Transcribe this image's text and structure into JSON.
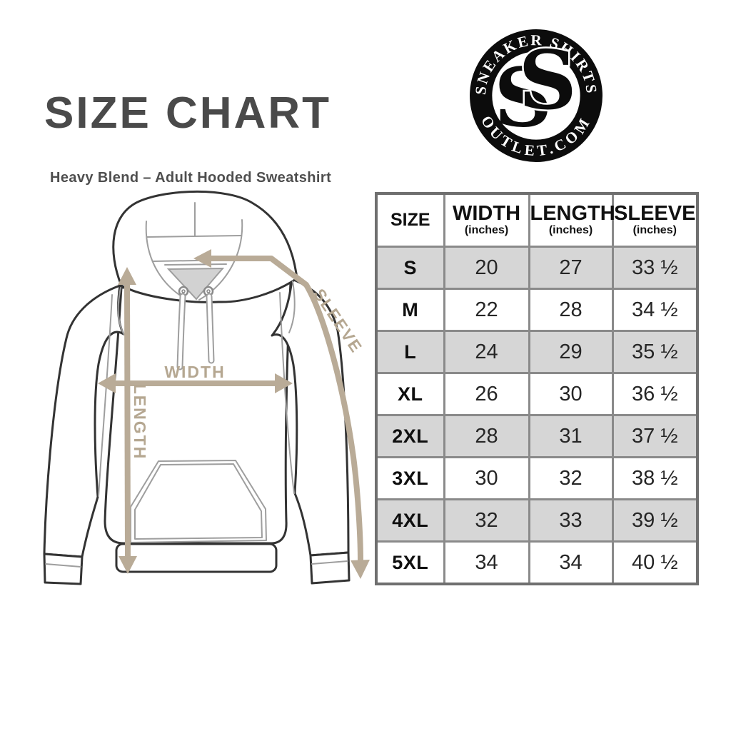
{
  "header": {
    "title": "SIZE CHART",
    "subtitle": "Heavy Blend – Adult Hooded Sweatshirt"
  },
  "logo": {
    "arc_top": "SNEAKER SHIRTS",
    "arc_bottom": "OUTLET.COM",
    "monogram_left": "S",
    "monogram_right": "S",
    "bg_color": "#0c0c0c",
    "text_color": "#ffffff"
  },
  "diagram": {
    "width_label": "WIDTH",
    "length_label": "LENGTH",
    "sleeve_label": "SLEEVE",
    "arrow_color": "#b9ab97",
    "outline_color": "#333333",
    "seam_color": "#9e9e9e"
  },
  "table": {
    "columns": [
      {
        "label": "SIZE",
        "sub": ""
      },
      {
        "label": "WIDTH",
        "sub": "(inches)"
      },
      {
        "label": "LENGTH",
        "sub": "(inches)"
      },
      {
        "label": "SLEEVE",
        "sub": "(inches)"
      }
    ],
    "rows": [
      [
        "S",
        "20",
        "27",
        "33 ½"
      ],
      [
        "M",
        "22",
        "28",
        "34 ½"
      ],
      [
        "L",
        "24",
        "29",
        "35 ½"
      ],
      [
        "XL",
        "26",
        "30",
        "36 ½"
      ],
      [
        "2XL",
        "28",
        "31",
        "37 ½"
      ],
      [
        "3XL",
        "30",
        "32",
        "38 ½"
      ],
      [
        "4XL",
        "32",
        "33",
        "39 ½"
      ],
      [
        "5XL",
        "34",
        "34",
        "40 ½"
      ]
    ],
    "border_color": "#8a8a8a",
    "alt_row_color": "#d6d6d6"
  },
  "chart_data": {
    "type": "table",
    "title": "SIZE CHART",
    "subtitle": "Heavy Blend – Adult Hooded Sweatshirt",
    "columns": [
      "SIZE",
      "WIDTH (inches)",
      "LENGTH (inches)",
      "SLEEVE (inches)"
    ],
    "rows": [
      [
        "S",
        20,
        27,
        33.5
      ],
      [
        "M",
        22,
        28,
        34.5
      ],
      [
        "L",
        24,
        29,
        35.5
      ],
      [
        "XL",
        26,
        30,
        36.5
      ],
      [
        "2XL",
        28,
        31,
        37.5
      ],
      [
        "3XL",
        30,
        32,
        38.5
      ],
      [
        "4XL",
        32,
        33,
        39.5
      ],
      [
        "5XL",
        34,
        34,
        40.5
      ]
    ]
  }
}
